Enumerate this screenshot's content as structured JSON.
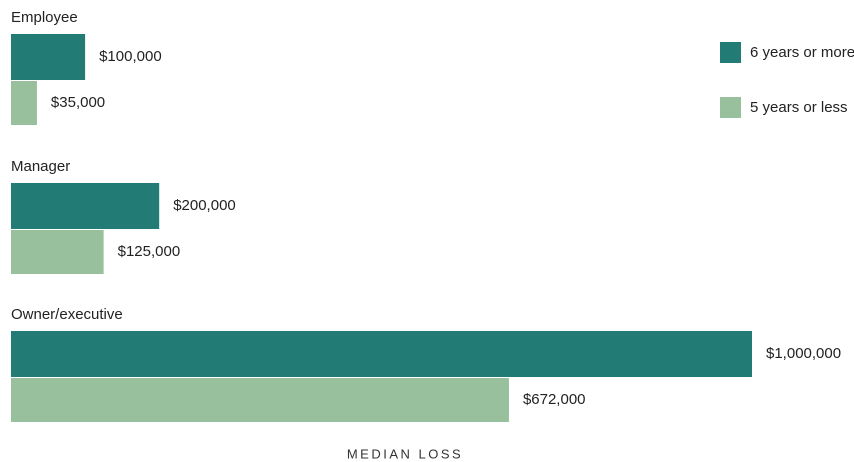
{
  "chart_data": {
    "type": "bar",
    "orientation": "horizontal",
    "categories": [
      "Employee",
      "Manager",
      "Owner/executive"
    ],
    "series": [
      {
        "name": "6 years or more",
        "color": "#237b76",
        "values": [
          100000,
          200000,
          1000000
        ],
        "value_labels": [
          "$100,000",
          "$200,000",
          "$1,000,000"
        ]
      },
      {
        "name": "5 years or less",
        "color": "#98c09d",
        "values": [
          35000,
          125000,
          672000
        ],
        "value_labels": [
          "$35,000",
          "$125,000",
          "$672,000"
        ]
      }
    ],
    "xlabel": "MEDIAN LOSS",
    "xlim": [
      0,
      1000000
    ],
    "legend": "top-right"
  }
}
